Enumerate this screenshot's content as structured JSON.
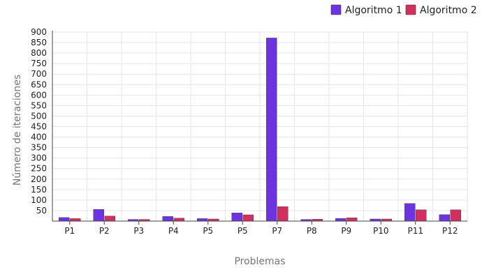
{
  "chart_data": {
    "type": "bar",
    "xlabel": "Problemas",
    "ylabel": "Número de iteraciones",
    "categories": [
      "P1",
      "P2",
      "P3",
      "P4",
      "P5",
      "P5",
      "P7",
      "P8",
      "P9",
      "P10",
      "P11",
      "P12"
    ],
    "series": [
      {
        "name": "Algoritmo 1",
        "color": "#6c33e0",
        "values": [
          17,
          56,
          8,
          22,
          12,
          39,
          872,
          8,
          13,
          10,
          84,
          31
        ]
      },
      {
        "name": "Algoritmo 2",
        "color": "#d12f5f",
        "values": [
          12,
          24,
          8,
          14,
          10,
          30,
          69,
          9,
          16,
          10,
          54,
          54
        ]
      }
    ],
    "ylim": [
      0,
      900
    ],
    "yticks": [
      50,
      100,
      150,
      200,
      250,
      300,
      350,
      400,
      450,
      500,
      550,
      600,
      650,
      700,
      750,
      800,
      850,
      900
    ],
    "grid": true,
    "legend_position": "top-right"
  }
}
